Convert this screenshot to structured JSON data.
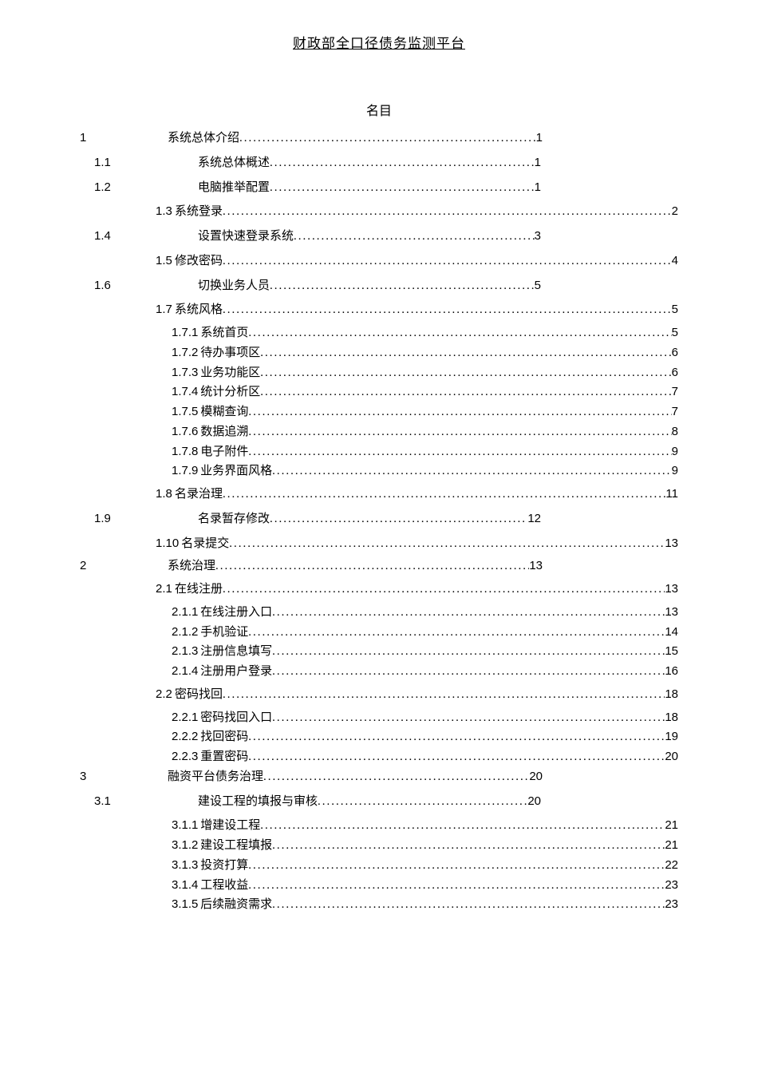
{
  "header": "财政部全口径债务监测平台",
  "toc_title": "名目",
  "items": [
    {
      "type": "chapter",
      "num": "1",
      "label": "系统总体介绍",
      "page": "1"
    },
    {
      "type": "sec",
      "num": "1.1",
      "label": "系统总体概述",
      "page": "1"
    },
    {
      "type": "sec",
      "num": "1.2",
      "label": "电脑推举配置",
      "page": "1"
    },
    {
      "type": "sub2w",
      "num": "1.3",
      "label": "系统登录",
      "page": "2"
    },
    {
      "type": "sec",
      "num": "1.4",
      "label": "设置快速登录系统",
      "page": "3"
    },
    {
      "type": "sub2w",
      "num": "1.5",
      "label": "修改密码",
      "page": "4"
    },
    {
      "type": "sec",
      "num": "1.6",
      "label": "切换业务人员",
      "page": "5"
    },
    {
      "type": "sub2w",
      "num": "1.7",
      "label": "系统风格",
      "page": "5"
    },
    {
      "type": "sub3",
      "num": "1.7.1",
      "label": "系统首页",
      "page": "5"
    },
    {
      "type": "sub3",
      "num": "1.7.2",
      "label": "待办事项区",
      "page": "6"
    },
    {
      "type": "sub3",
      "num": "1.7.3",
      "label": "业务功能区",
      "page": "6"
    },
    {
      "type": "sub3",
      "num": "1.7.4",
      "label": "统计分析区",
      "page": "7"
    },
    {
      "type": "sub3",
      "num": "1.7.5",
      "label": "模糊查询",
      "page": "7"
    },
    {
      "type": "sub3",
      "num": "1.7.6",
      "label": "数据追溯",
      "page": "8"
    },
    {
      "type": "sub3",
      "num": "1.7.8",
      "label": "电子附件",
      "page": "9"
    },
    {
      "type": "sub3",
      "num": "1.7.9",
      "label": "业务界面风格",
      "page": "9"
    },
    {
      "type": "sub2w",
      "num": "1.8",
      "label": "名录治理",
      "page": "11"
    },
    {
      "type": "sec",
      "num": "1.9",
      "label": "名录暂存修改",
      "page": "12"
    },
    {
      "type": "sub2w",
      "num": "1.10",
      "label": "名录提交",
      "page": "13"
    },
    {
      "type": "chapter",
      "num": "2",
      "label": "系统治理",
      "page": "13"
    },
    {
      "type": "sub2w",
      "num": "2.1",
      "label": "在线注册",
      "page": "13"
    },
    {
      "type": "sub3",
      "num": "2.1.1",
      "label": "在线注册入口",
      "page": "13"
    },
    {
      "type": "sub3",
      "num": "2.1.2",
      "label": "手机验证",
      "page": "14"
    },
    {
      "type": "sub3",
      "num": "2.1.3",
      "label": "注册信息填写",
      "page": "15"
    },
    {
      "type": "sub3",
      "num": "2.1.4",
      "label": "注册用户登录",
      "page": "16"
    },
    {
      "type": "sub2w",
      "num": "2.2",
      "label": "密码找回",
      "page": "18"
    },
    {
      "type": "sub3",
      "num": "2.2.1",
      "label": "密码找回入口",
      "page": "18"
    },
    {
      "type": "sub3",
      "num": "2.2.2",
      "label": "找回密码",
      "page": "19"
    },
    {
      "type": "sub3",
      "num": "2.2.3",
      "label": "重置密码",
      "page": "20"
    },
    {
      "type": "chapter",
      "num": "3",
      "label": "融资平台债务治理",
      "page": "20"
    },
    {
      "type": "sec",
      "num": "3.1",
      "label": "建设工程的填报与审核",
      "page": "20"
    },
    {
      "type": "sub3",
      "num": "3.1.1",
      "label": "增建设工程",
      "page": "21"
    },
    {
      "type": "sub3",
      "num": "3.1.2",
      "label": "建设工程填报",
      "page": "21"
    },
    {
      "type": "sub3",
      "num": "3.1.3",
      "label": "投资打算",
      "page": "22"
    },
    {
      "type": "sub3",
      "num": "3.1.4",
      "label": "工程收益",
      "page": "23"
    },
    {
      "type": "sub3",
      "num": "3.1.5",
      "label": "后续融资需求",
      "page": "23"
    }
  ]
}
